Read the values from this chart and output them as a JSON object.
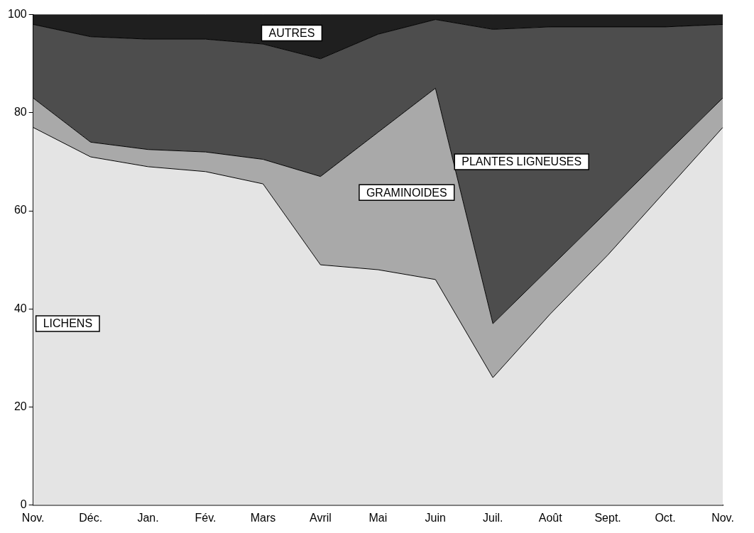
{
  "chart_data": {
    "type": "area",
    "stacked": true,
    "categories": [
      "Nov.",
      "Déc.",
      "Jan.",
      "Fév.",
      "Mars",
      "Avril",
      "Mai",
      "Juin",
      "Juil.",
      "Août",
      "Sept.",
      "Oct.",
      "Nov."
    ],
    "series": [
      {
        "name": "LICHENS",
        "color": "#e4e4e4",
        "values": [
          77,
          71,
          69,
          68,
          65.5,
          49,
          48,
          46,
          26,
          39,
          51,
          64,
          77
        ]
      },
      {
        "name": "GRAMINOIDES",
        "color": "#a9a9a9",
        "values": [
          6,
          3,
          3.5,
          4,
          5,
          18,
          28,
          39,
          11,
          9.5,
          9,
          7.5,
          6
        ]
      },
      {
        "name": "PLANTES LIGNEUSES",
        "color": "#4d4d4d",
        "values": [
          15,
          21.5,
          22.5,
          23,
          23.5,
          24,
          20,
          14,
          60,
          49,
          37.5,
          26,
          15
        ]
      },
      {
        "name": "AUTRES",
        "color": "#1f1f1f",
        "values": [
          2,
          4.5,
          5,
          5,
          6,
          9,
          4,
          1,
          3,
          2.5,
          2.5,
          2.5,
          2
        ]
      }
    ],
    "ylim": [
      0,
      100
    ],
    "yticks": [
      0,
      20,
      40,
      60,
      80,
      100
    ],
    "grid": false,
    "legend": false
  }
}
